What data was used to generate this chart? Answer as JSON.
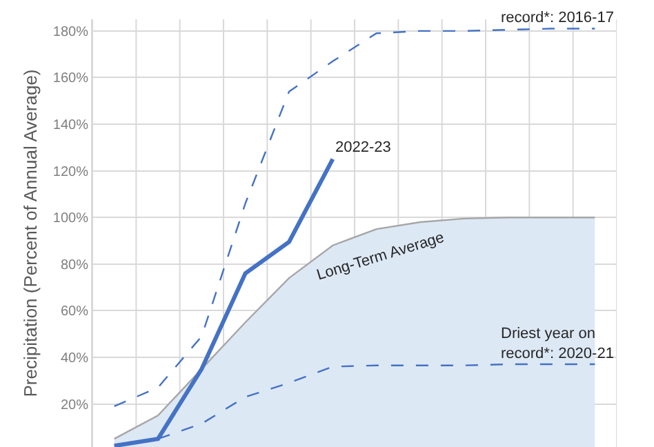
{
  "chart_data": {
    "type": "line",
    "ylabel": "Precipitation (Percent of Annual Average)",
    "categories": [
      null,
      null,
      null,
      null,
      null,
      null,
      null,
      null,
      null,
      null,
      null,
      null
    ],
    "series": [
      {
        "type": "area",
        "name": "Long-Term Average",
        "color": "#a6a6a6",
        "values": [
          5,
          15,
          35,
          55,
          74,
          88,
          95,
          98,
          99.5,
          100,
          100,
          100
        ]
      },
      {
        "name": "record*: 2016-17",
        "color": "#4472c4",
        "line_style": "dashed",
        "values": [
          19,
          27,
          49,
          106,
          154,
          167,
          179,
          180,
          180,
          180.5,
          181,
          181
        ]
      },
      {
        "name": "Driest year on record*: 2020-21",
        "color": "#4472c4",
        "line_style": "dashed",
        "values": [
          null,
          5,
          11.5,
          23,
          29,
          36,
          36.5,
          36.5,
          36.5,
          37,
          37,
          37
        ]
      },
      {
        "name": "2022-23",
        "color": "#4472c4",
        "line_style": "solid",
        "values": [
          2,
          5,
          35,
          76,
          89.5,
          125,
          null,
          null,
          null,
          null,
          null,
          null
        ]
      }
    ],
    "ylim": [
      1.5,
      185
    ],
    "yticks": [
      {
        "value": 20,
        "label": "20%"
      },
      {
        "value": 40,
        "label": "40%"
      },
      {
        "value": 60,
        "label": "60%"
      },
      {
        "value": 80,
        "label": "80%"
      },
      {
        "value": 100,
        "label": "100%"
      },
      {
        "value": 120,
        "label": "120%"
      },
      {
        "value": 140,
        "label": "140%"
      },
      {
        "value": 160,
        "label": "160%"
      },
      {
        "value": 180,
        "label": "180%"
      }
    ],
    "tick_labels": "y",
    "grid": true,
    "legend": false,
    "marker": "none"
  }
}
